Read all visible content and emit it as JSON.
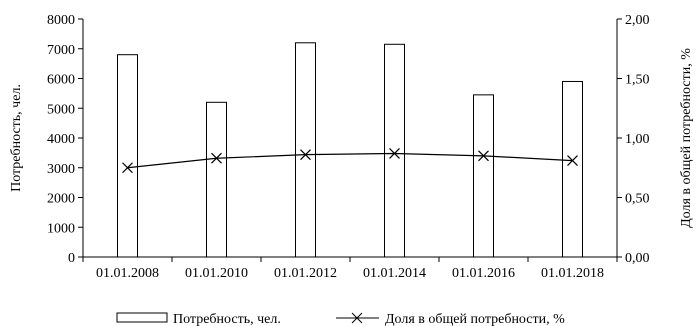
{
  "chart_data": {
    "type": "bar",
    "title": "",
    "categories": [
      "01.01.2008",
      "01.01.2010",
      "01.01.2012",
      "01.01.2014",
      "01.01.2016",
      "01.01.2018"
    ],
    "bar_series": {
      "name": "Потребность, чел.",
      "values": [
        6800,
        5200,
        7200,
        7150,
        5450,
        5900
      ],
      "fill": "#ffffff",
      "stroke": "#000000"
    },
    "line_series": {
      "name": "Доля в общей потребности, %",
      "values": [
        0.75,
        0.83,
        0.86,
        0.87,
        0.85,
        0.81
      ],
      "marker": "x",
      "stroke": "#000000"
    },
    "ylabel_left": "Потребность, чел.",
    "ylabel_right": "Доля в общей потребности, %",
    "ylim_left": [
      0,
      8000
    ],
    "ylim_right": [
      0,
      2
    ],
    "yticks_left": [
      "0",
      "1000",
      "2000",
      "3000",
      "4000",
      "5000",
      "6000",
      "7000",
      "8000"
    ],
    "yticks_right": [
      "0,00",
      "0,50",
      "1,00",
      "1,50",
      "2,00"
    ],
    "grid": false,
    "legend_position": "bottom"
  }
}
